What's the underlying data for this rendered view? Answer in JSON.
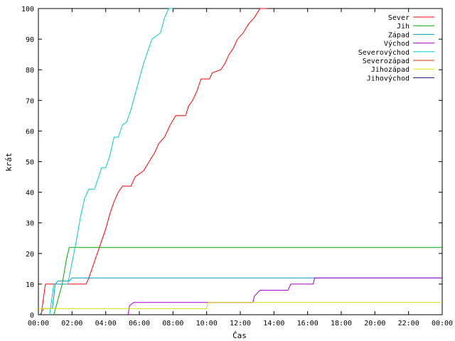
{
  "chart_data": {
    "type": "line",
    "xlabel": "Čas",
    "ylabel": "krát",
    "xlim": [
      "00:00",
      "24:00"
    ],
    "ylim": [
      0,
      100
    ],
    "x_ticks": [
      "00:00",
      "02:00",
      "04:00",
      "06:00",
      "08:00",
      "10:00",
      "12:00",
      "14:00",
      "16:00",
      "18:00",
      "20:00",
      "22:00",
      "00:00"
    ],
    "y_ticks": [
      0,
      10,
      20,
      30,
      40,
      50,
      60,
      70,
      80,
      90,
      100
    ],
    "grid": false,
    "legend_position": "top-right",
    "series": [
      {
        "name": "Sever",
        "color": "#ff0000",
        "points": [
          [
            "00:10",
            0
          ],
          [
            "00:25",
            10
          ],
          [
            "02:50",
            10
          ],
          [
            "03:00",
            12
          ],
          [
            "03:15",
            16
          ],
          [
            "03:30",
            20
          ],
          [
            "03:45",
            24
          ],
          [
            "04:00",
            28
          ],
          [
            "04:15",
            33
          ],
          [
            "04:30",
            37
          ],
          [
            "04:45",
            40
          ],
          [
            "05:00",
            42
          ],
          [
            "05:30",
            42
          ],
          [
            "05:45",
            45
          ],
          [
            "06:15",
            47
          ],
          [
            "06:35",
            50
          ],
          [
            "06:55",
            53
          ],
          [
            "07:10",
            56
          ],
          [
            "07:30",
            58
          ],
          [
            "07:50",
            62
          ],
          [
            "08:10",
            65
          ],
          [
            "08:45",
            65
          ],
          [
            "08:55",
            68
          ],
          [
            "09:10",
            70
          ],
          [
            "09:25",
            73
          ],
          [
            "09:40",
            77
          ],
          [
            "10:10",
            77
          ],
          [
            "10:20",
            79
          ],
          [
            "10:50",
            80
          ],
          [
            "11:05",
            82
          ],
          [
            "11:20",
            85
          ],
          [
            "11:35",
            87
          ],
          [
            "11:50",
            90
          ],
          [
            "12:10",
            92
          ],
          [
            "12:30",
            95
          ],
          [
            "12:50",
            97
          ],
          [
            "13:10",
            100
          ],
          [
            "13:35",
            100
          ]
        ]
      },
      {
        "name": "Jih",
        "color": "#00aa00",
        "points": [
          [
            "00:55",
            0
          ],
          [
            "01:10",
            5
          ],
          [
            "01:25",
            10
          ],
          [
            "01:40",
            18
          ],
          [
            "01:50",
            22
          ],
          [
            "24:00",
            22
          ]
        ]
      },
      {
        "name": "Západ",
        "color": "#0099bb",
        "points": [
          [
            "00:05",
            0
          ],
          [
            "00:20",
            2
          ],
          [
            "00:50",
            2
          ],
          [
            "01:00",
            10
          ],
          [
            "01:10",
            11
          ],
          [
            "01:50",
            11
          ],
          [
            "02:00",
            12
          ],
          [
            "24:00",
            12
          ]
        ]
      },
      {
        "name": "Východ",
        "color": "#aa00cc",
        "points": [
          [
            "05:20",
            0
          ],
          [
            "05:25",
            3
          ],
          [
            "05:40",
            4
          ],
          [
            "12:45",
            4
          ],
          [
            "12:50",
            6
          ],
          [
            "13:10",
            8
          ],
          [
            "14:50",
            8
          ],
          [
            "15:00",
            10
          ],
          [
            "16:20",
            10
          ],
          [
            "16:25",
            12
          ],
          [
            "24:00",
            12
          ]
        ]
      },
      {
        "name": "Severovýchod",
        "color": "#00cccc",
        "points": [
          [
            "00:40",
            0
          ],
          [
            "00:55",
            10
          ],
          [
            "01:45",
            10
          ],
          [
            "02:00",
            17
          ],
          [
            "02:15",
            24
          ],
          [
            "02:30",
            32
          ],
          [
            "02:45",
            38
          ],
          [
            "03:00",
            41
          ],
          [
            "03:20",
            41
          ],
          [
            "03:35",
            45
          ],
          [
            "03:45",
            48
          ],
          [
            "04:00",
            48
          ],
          [
            "04:15",
            52
          ],
          [
            "04:30",
            58
          ],
          [
            "04:45",
            58
          ],
          [
            "05:00",
            62
          ],
          [
            "05:15",
            63
          ],
          [
            "05:30",
            67
          ],
          [
            "05:45",
            72
          ],
          [
            "06:00",
            77
          ],
          [
            "06:15",
            82
          ],
          [
            "06:30",
            86
          ],
          [
            "06:45",
            90
          ],
          [
            "07:00",
            91
          ],
          [
            "07:15",
            92
          ],
          [
            "07:30",
            97
          ],
          [
            "07:45",
            100
          ],
          [
            "08:00",
            100
          ]
        ]
      },
      {
        "name": "Severozápad",
        "color": "#cc3300",
        "points": []
      },
      {
        "name": "Jihozápad",
        "color": "#dddd00",
        "points": [
          [
            "00:00",
            2
          ],
          [
            "10:00",
            2
          ],
          [
            "10:05",
            4
          ],
          [
            "24:00",
            4
          ]
        ]
      },
      {
        "name": "Jihovýchod",
        "color": "#220088",
        "points": []
      }
    ]
  }
}
